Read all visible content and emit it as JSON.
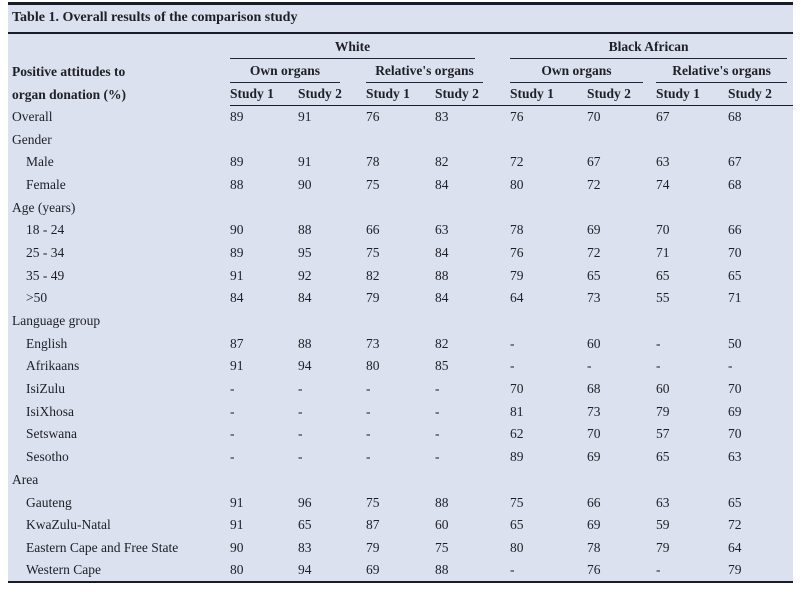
{
  "colors": {
    "table_background": "#dbe1ee",
    "rule": "#1a1c2b",
    "text": "#1e1f27"
  },
  "table": {
    "title": "Table 1. Overall results of the comparison study",
    "row_header": "Positive attitudes to\norgan donation (%)",
    "groups": [
      {
        "label": "White"
      },
      {
        "label": "Black African"
      }
    ],
    "subgroups": [
      "Own organs",
      "Relative's organs",
      "Own organs",
      "Relative's organs"
    ],
    "study_headers": [
      "Study 1",
      "Study 2",
      "Study 1",
      "Study 2",
      "Study 1",
      "Study 2",
      "Study 1",
      "Study 2"
    ],
    "rows": [
      {
        "label": "Overall",
        "type": "data",
        "indent": false,
        "values": [
          "89",
          "91",
          "76",
          "83",
          "76",
          "70",
          "67",
          "68"
        ]
      },
      {
        "label": "Gender",
        "type": "section",
        "indent": false,
        "values": [
          "",
          "",
          "",
          "",
          "",
          "",
          "",
          ""
        ]
      },
      {
        "label": "Male",
        "type": "data",
        "indent": true,
        "values": [
          "89",
          "91",
          "78",
          "82",
          "72",
          "67",
          "63",
          "67"
        ]
      },
      {
        "label": "Female",
        "type": "data",
        "indent": true,
        "values": [
          "88",
          "90",
          "75",
          "84",
          "80",
          "72",
          "74",
          "68"
        ]
      },
      {
        "label": "Age (years)",
        "type": "section",
        "indent": false,
        "values": [
          "",
          "",
          "",
          "",
          "",
          "",
          "",
          ""
        ]
      },
      {
        "label": "18 - 24",
        "type": "data",
        "indent": true,
        "values": [
          "90",
          "88",
          "66",
          "63",
          "78",
          "69",
          "70",
          "66"
        ]
      },
      {
        "label": "25 - 34",
        "type": "data",
        "indent": true,
        "values": [
          "89",
          "95",
          "75",
          "84",
          "76",
          "72",
          "71",
          "70"
        ]
      },
      {
        "label": "35 - 49",
        "type": "data",
        "indent": true,
        "values": [
          "91",
          "92",
          "82",
          "88",
          "79",
          "65",
          "65",
          "65"
        ]
      },
      {
        "label": ">50",
        "type": "data",
        "indent": true,
        "values": [
          "84",
          "84",
          "79",
          "84",
          "64",
          "73",
          "55",
          "71"
        ]
      },
      {
        "label": "Language group",
        "type": "section",
        "indent": false,
        "values": [
          "",
          "",
          "",
          "",
          "",
          "",
          "",
          ""
        ]
      },
      {
        "label": "English",
        "type": "data",
        "indent": true,
        "values": [
          "87",
          "88",
          "73",
          "82",
          "-",
          "60",
          "-",
          "50"
        ]
      },
      {
        "label": "Afrikaans",
        "type": "data",
        "indent": true,
        "values": [
          "91",
          "94",
          "80",
          "85",
          "-",
          "-",
          "-",
          "-"
        ]
      },
      {
        "label": "IsiZulu",
        "type": "data",
        "indent": true,
        "values": [
          "-",
          "-",
          "-",
          "-",
          "70",
          "68",
          "60",
          "70"
        ]
      },
      {
        "label": "IsiXhosa",
        "type": "data",
        "indent": true,
        "values": [
          "-",
          "-",
          "-",
          "-",
          "81",
          "73",
          "79",
          "69"
        ]
      },
      {
        "label": "Setswana",
        "type": "data",
        "indent": true,
        "values": [
          "-",
          "-",
          "-",
          "-",
          "62",
          "70",
          "57",
          "70"
        ]
      },
      {
        "label": "Sesotho",
        "type": "data",
        "indent": true,
        "values": [
          "-",
          "-",
          "-",
          "-",
          "89",
          "69",
          "65",
          "63"
        ]
      },
      {
        "label": "Area",
        "type": "section",
        "indent": false,
        "values": [
          "",
          "",
          "",
          "",
          "",
          "",
          "",
          ""
        ]
      },
      {
        "label": "Gauteng",
        "type": "data",
        "indent": true,
        "values": [
          "91",
          "96",
          "75",
          "88",
          "75",
          "66",
          "63",
          "65"
        ]
      },
      {
        "label": "KwaZulu-Natal",
        "type": "data",
        "indent": true,
        "values": [
          "91",
          "65",
          "87",
          "60",
          "65",
          "69",
          "59",
          "72"
        ]
      },
      {
        "label": "Eastern Cape and Free State",
        "type": "data",
        "indent": true,
        "values": [
          "90",
          "83",
          "79",
          "75",
          "80",
          "78",
          "79",
          "64"
        ]
      },
      {
        "label": "Western Cape",
        "type": "data",
        "indent": true,
        "values": [
          "80",
          "94",
          "69",
          "88",
          "-",
          "76",
          "-",
          "79"
        ]
      }
    ]
  }
}
